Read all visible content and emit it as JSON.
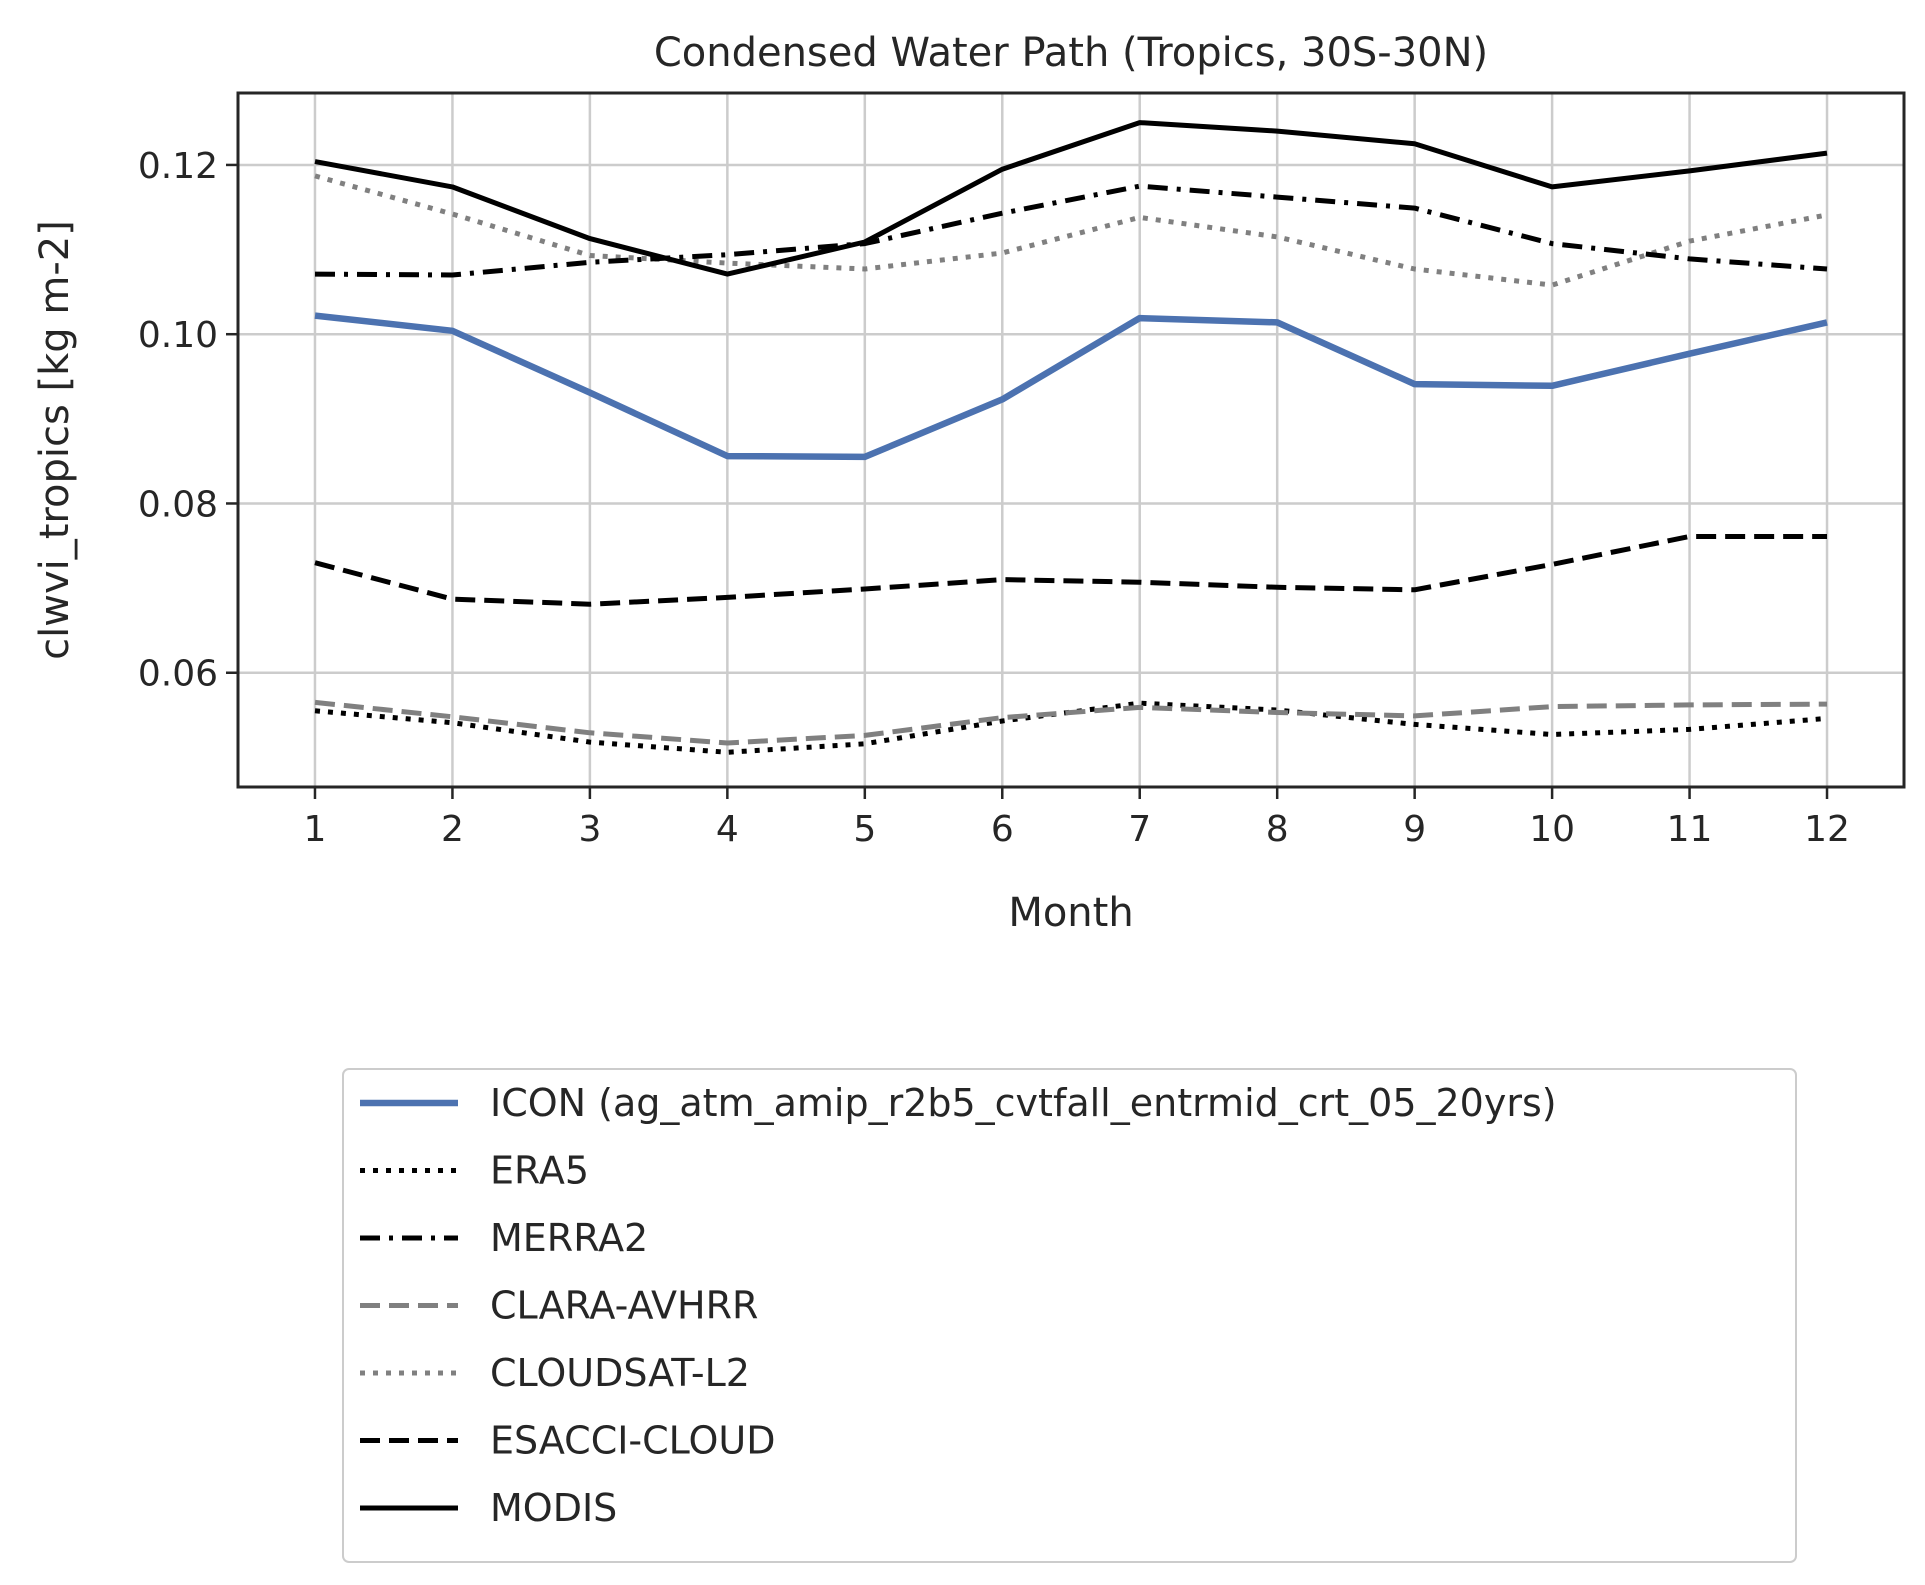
{
  "chart_data": {
    "type": "line",
    "title": "Condensed Water Path (Tropics, 30S-30N)",
    "xlabel": "Month",
    "ylabel": "clwvi_tropics [kg m-2]",
    "x": [
      1,
      2,
      3,
      4,
      5,
      6,
      7,
      8,
      9,
      10,
      11,
      12
    ],
    "xticks": [
      "1",
      "2",
      "3",
      "4",
      "5",
      "6",
      "7",
      "8",
      "9",
      "10",
      "11",
      "12"
    ],
    "xlim": [
      0.44,
      12.56
    ],
    "yticks": [
      0.06,
      0.08,
      0.1,
      0.12
    ],
    "ytick_labels": [
      "0.06",
      "0.08",
      "0.10",
      "0.12"
    ],
    "ylim": [
      0.0465,
      0.1285
    ],
    "grid": true,
    "legend_placement": "below",
    "series": [
      {
        "name": "ICON (ag_atm_amip_r2b5_cvtfall_entrmid_crt_05_20yrs)",
        "color": "#4c72b0",
        "style": "solid-thick",
        "values": [
          0.1022,
          0.1004,
          0.0931,
          0.0856,
          0.0855,
          0.0923,
          0.1019,
          0.1014,
          0.0941,
          0.0939,
          0.0977,
          0.1014
        ]
      },
      {
        "name": "ERA5",
        "color": "#000000",
        "style": "dotted",
        "values": [
          0.0555,
          0.0541,
          0.0518,
          0.0506,
          0.0516,
          0.0543,
          0.0564,
          0.0556,
          0.0539,
          0.0527,
          0.0533,
          0.0546
        ]
      },
      {
        "name": "MERRA2",
        "color": "#000000",
        "style": "dashdot",
        "values": [
          0.1071,
          0.107,
          0.1085,
          0.1094,
          0.1107,
          0.1143,
          0.1175,
          0.1162,
          0.1149,
          0.1107,
          0.1089,
          0.1077
        ]
      },
      {
        "name": "CLARA-AVHRR",
        "color": "#808080",
        "style": "dashed",
        "values": [
          0.0565,
          0.0548,
          0.0529,
          0.0517,
          0.0526,
          0.0547,
          0.0559,
          0.0553,
          0.0549,
          0.056,
          0.0562,
          0.0563
        ]
      },
      {
        "name": "CLOUDSAT-L2",
        "color": "#808080",
        "style": "dotted",
        "values": [
          0.1187,
          0.1142,
          0.1093,
          0.1084,
          0.1077,
          0.1096,
          0.1138,
          0.1115,
          0.1077,
          0.1058,
          0.111,
          0.1141
        ]
      },
      {
        "name": "ESACCI-CLOUD",
        "color": "#000000",
        "style": "dashed",
        "values": [
          0.073,
          0.0687,
          0.0681,
          0.0689,
          0.0699,
          0.071,
          0.0707,
          0.0701,
          0.0698,
          0.0728,
          0.0761,
          0.0761
        ]
      },
      {
        "name": "MODIS",
        "color": "#000000",
        "style": "solid",
        "values": [
          0.1204,
          0.1174,
          0.1113,
          0.1071,
          0.1109,
          0.1195,
          0.125,
          0.124,
          0.1225,
          0.1174,
          0.1193,
          0.1214
        ]
      }
    ]
  }
}
